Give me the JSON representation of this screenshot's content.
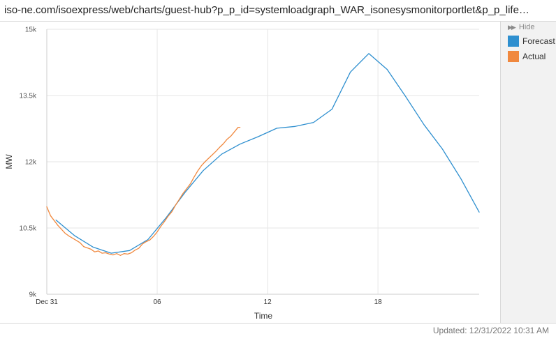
{
  "browser": {
    "url": "iso-ne.com/isoexpress/web/charts/guest-hub?p_p_id=systemloadgraph_WAR_isonesysmonitorportlet&p_p_life…"
  },
  "legend": {
    "hide_label": "Hide",
    "items": [
      {
        "label": "Forecast",
        "color": "#2e8fcf"
      },
      {
        "label": "Actual",
        "color": "#f0883e"
      }
    ]
  },
  "footer": {
    "updated": "Updated: 12/31/2022 10:31 AM"
  },
  "chart_data": {
    "type": "line",
    "title": "",
    "xlabel": "Time",
    "ylabel": "MW",
    "xlim": [
      0,
      23.5
    ],
    "ylim": [
      9000,
      15000
    ],
    "y_ticks": [
      {
        "value": 9000,
        "label": "9k"
      },
      {
        "value": 10500,
        "label": "10.5k"
      },
      {
        "value": 12000,
        "label": "12k"
      },
      {
        "value": 13500,
        "label": "13.5k"
      },
      {
        "value": 15000,
        "label": "15k"
      }
    ],
    "x_ticks": [
      {
        "value": 0,
        "label": "Dec 31"
      },
      {
        "value": 6,
        "label": "06"
      },
      {
        "value": 12,
        "label": "12"
      },
      {
        "value": 18,
        "label": "18"
      }
    ],
    "grid": true,
    "legend_position": "right",
    "series": [
      {
        "name": "Forecast",
        "color": "#2e8fcf",
        "x": [
          0.5,
          1.5,
          2.5,
          3.5,
          4.5,
          5.5,
          6.5,
          7.5,
          8.5,
          9.5,
          10.5,
          11.5,
          12.5,
          13.5,
          14.5,
          15.5,
          16.5,
          17.5,
          18.5,
          19.5,
          20.5,
          21.5,
          22.5,
          23.5
        ],
        "y": [
          10680,
          10330,
          10070,
          9930,
          9990,
          10240,
          10740,
          11300,
          11800,
          12170,
          12400,
          12570,
          12760,
          12800,
          12890,
          13190,
          14030,
          14450,
          14090,
          13480,
          12840,
          12290,
          11620,
          10860
        ]
      },
      {
        "name": "Actual",
        "color": "#f0883e",
        "x": [
          0.0,
          0.2,
          0.4,
          0.6,
          0.8,
          1.0,
          1.2,
          1.4,
          1.6,
          1.8,
          2.0,
          2.2,
          2.4,
          2.6,
          2.8,
          3.0,
          3.2,
          3.4,
          3.6,
          3.8,
          4.0,
          4.2,
          4.4,
          4.6,
          4.8,
          5.0,
          5.2,
          5.4,
          5.6,
          5.8,
          6.0,
          6.2,
          6.4,
          6.6,
          6.8,
          7.0,
          7.2,
          7.4,
          7.6,
          7.8,
          8.0,
          8.2,
          8.4,
          8.6,
          8.8,
          9.0,
          9.2,
          9.4,
          9.6,
          9.8,
          10.0,
          10.2,
          10.4,
          10.5
        ],
        "y": [
          10980,
          10780,
          10670,
          10560,
          10470,
          10380,
          10320,
          10270,
          10220,
          10170,
          10080,
          10050,
          10020,
          9960,
          9980,
          9930,
          9940,
          9910,
          9890,
          9920,
          9880,
          9920,
          9910,
          9940,
          10000,
          10040,
          10140,
          10190,
          10230,
          10310,
          10410,
          10540,
          10650,
          10770,
          10870,
          11020,
          11150,
          11280,
          11390,
          11500,
          11650,
          11790,
          11910,
          12000,
          12080,
          12160,
          12240,
          12330,
          12410,
          12510,
          12580,
          12680,
          12780,
          12780
        ]
      }
    ]
  }
}
